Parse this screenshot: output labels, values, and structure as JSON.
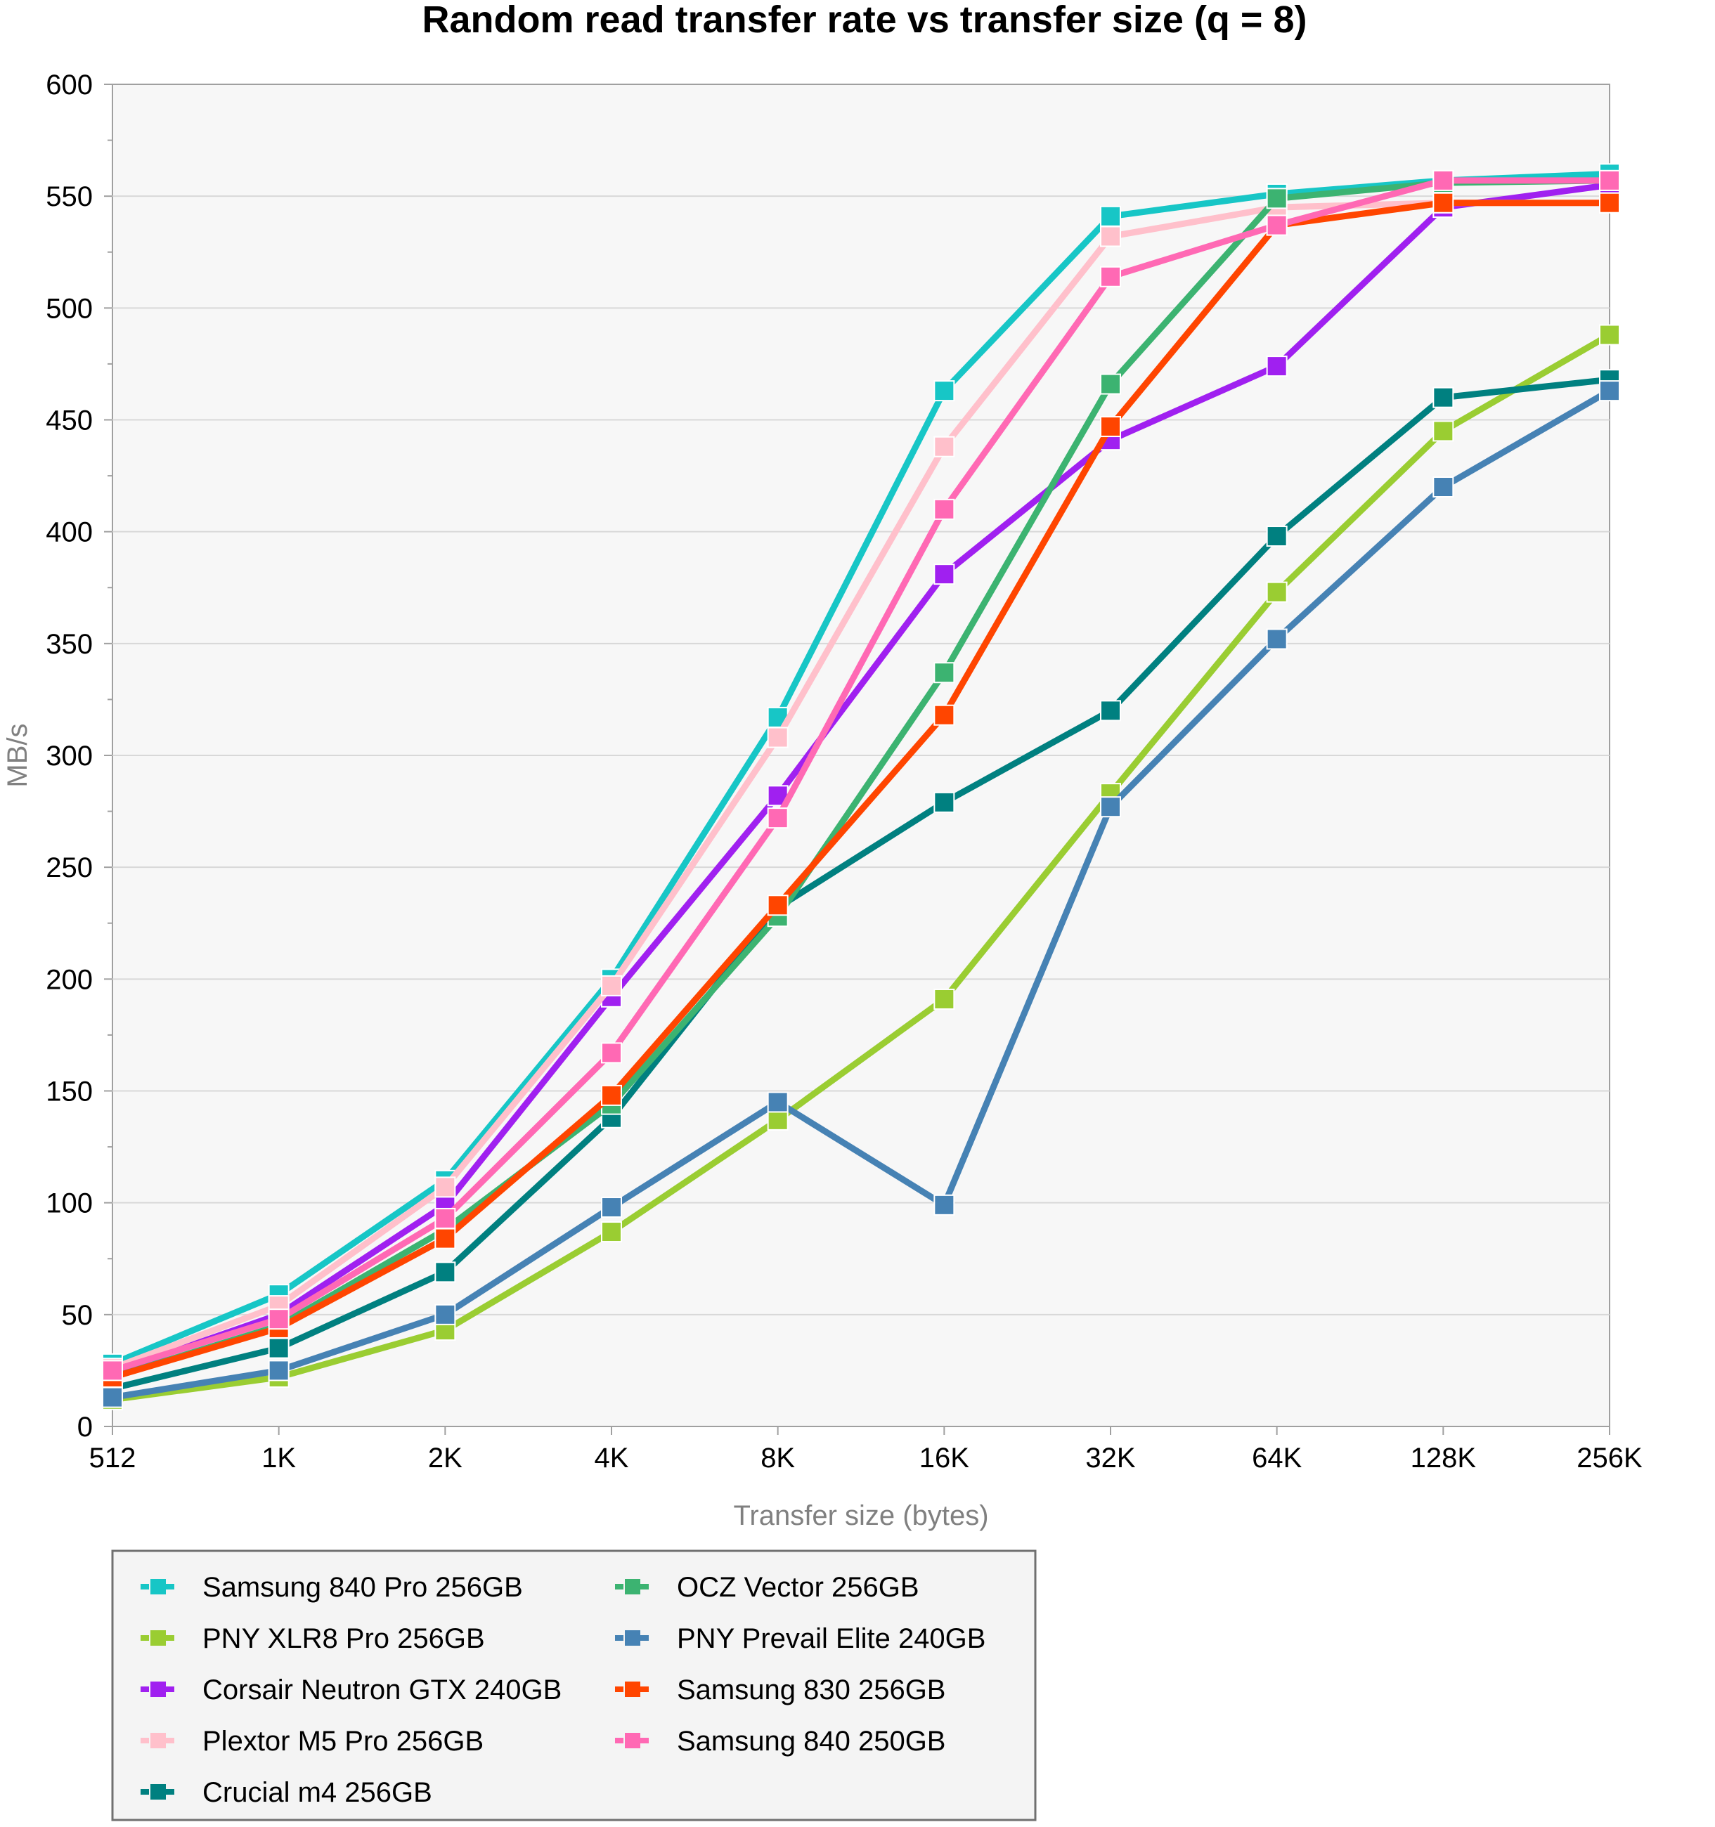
{
  "chart_data": {
    "type": "line",
    "title": "Random read transfer rate vs transfer size (q = 8)",
    "xlabel": "Transfer size (bytes)",
    "ylabel": "MB/s",
    "categories": [
      "512",
      "1K",
      "2K",
      "4K",
      "8K",
      "16K",
      "32K",
      "64K",
      "128K",
      "256K"
    ],
    "ylim": [
      0,
      600
    ],
    "yticks": [
      0,
      50,
      100,
      150,
      200,
      250,
      300,
      350,
      400,
      450,
      500,
      550,
      600
    ],
    "grid": "horizontal",
    "legend_position": "bottom-left",
    "series": [
      {
        "name": "Samsung 840 Pro 256GB",
        "color": "#17c6c6",
        "values": [
          28,
          59,
          110,
          200,
          317,
          463,
          541,
          551,
          557,
          560
        ]
      },
      {
        "name": "PNY XLR8 Pro 256GB",
        "color": "#9acd32",
        "values": [
          12,
          22,
          43,
          87,
          137,
          191,
          283,
          373,
          445,
          488
        ]
      },
      {
        "name": "Corsair Neutron GTX 240GB",
        "color": "#a020f0",
        "values": [
          24,
          50,
          99,
          192,
          282,
          381,
          441,
          474,
          545,
          555
        ]
      },
      {
        "name": "Plextor M5 Pro 256GB",
        "color": "#ffc0cb",
        "values": [
          26,
          54,
          107,
          197,
          308,
          438,
          532,
          545,
          547,
          547
        ]
      },
      {
        "name": "Crucial m4 256GB",
        "color": "#008080",
        "values": [
          17,
          35,
          69,
          138,
          232,
          279,
          320,
          398,
          460,
          468
        ]
      },
      {
        "name": "OCZ Vector 256GB",
        "color": "#3cb371",
        "values": [
          22,
          45,
          88,
          144,
          228,
          337,
          466,
          549,
          556,
          557
        ]
      },
      {
        "name": "PNY Prevail Elite 240GB",
        "color": "#4682b4",
        "values": [
          13,
          25,
          50,
          98,
          145,
          99,
          277,
          352,
          420,
          463
        ]
      },
      {
        "name": "Samsung 830 256GB",
        "color": "#ff4500",
        "values": [
          22,
          44,
          84,
          148,
          233,
          318,
          447,
          537,
          547,
          547
        ]
      },
      {
        "name": "Samsung 840 250GB",
        "color": "#ff69b4",
        "values": [
          25,
          48,
          93,
          167,
          272,
          410,
          514,
          537,
          557,
          557
        ]
      }
    ],
    "legend_order": [
      "Samsung 840 Pro 256GB",
      "PNY XLR8 Pro 256GB",
      "Corsair Neutron GTX 240GB",
      "Plextor M5 Pro 256GB",
      "Crucial m4 256GB",
      "OCZ Vector 256GB",
      "PNY Prevail Elite 240GB",
      "Samsung 830 256GB",
      "Samsung 840 250GB"
    ]
  }
}
